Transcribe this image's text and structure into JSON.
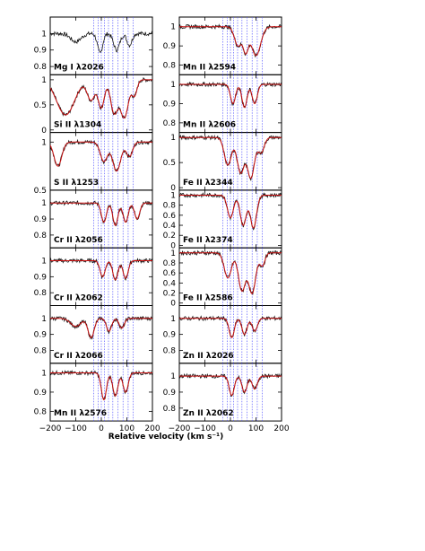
{
  "chart_data": {
    "type": "line",
    "xlabel": "Relative velocity (km s⁻¹)",
    "xlim": [
      -200,
      200
    ],
    "x_ticks": [
      "−200",
      "−100",
      "0",
      "100",
      "200"
    ],
    "component_velocities": [
      -30,
      -12,
      0,
      12,
      28,
      45,
      65,
      85,
      105,
      125
    ],
    "series": [
      {
        "name": "data",
        "color": "#000000"
      },
      {
        "name": "fit",
        "color": "#cc1111"
      }
    ],
    "columns": [
      [
        {
          "label": "Mg I λ2026",
          "ylim": [
            0.75,
            1.1
          ],
          "yticks": [
            "0.8",
            "0.9",
            "1"
          ],
          "fit": false,
          "features": [
            [
              -100,
              0.05,
              20
            ],
            [
              -5,
              0.12,
              10
            ],
            [
              60,
              0.1,
              12
            ],
            [
              110,
              0.07,
              10
            ]
          ]
        },
        {
          "label": "Si II λ1304",
          "ylim": [
            -0.05,
            1.1
          ],
          "yticks": [
            "0",
            "0.5",
            "1"
          ],
          "fit": true,
          "features": [
            [
              -140,
              0.7,
              35
            ],
            [
              -40,
              0.4,
              15
            ],
            [
              0,
              0.55,
              12
            ],
            [
              50,
              0.65,
              14
            ],
            [
              90,
              0.75,
              16
            ],
            [
              130,
              0.3,
              10
            ]
          ]
        },
        {
          "label": "S II λ1253",
          "ylim": [
            0.5,
            1.1
          ],
          "yticks": [
            "0.5",
            "1"
          ],
          "fit": true,
          "features": [
            [
              -170,
              0.25,
              15
            ],
            [
              10,
              0.2,
              14
            ],
            [
              60,
              0.3,
              16
            ],
            [
              110,
              0.15,
              12
            ]
          ]
        },
        {
          "label": "Cr II λ2056",
          "ylim": [
            0.72,
            1.08
          ],
          "yticks": [
            "0.8",
            "0.9",
            "1"
          ],
          "fit": true,
          "features": [
            [
              10,
              0.12,
              10
            ],
            [
              55,
              0.14,
              10
            ],
            [
              95,
              0.12,
              10
            ],
            [
              140,
              0.1,
              10
            ]
          ]
        },
        {
          "label": "Cr II λ2062",
          "ylim": [
            0.72,
            1.08
          ],
          "yticks": [
            "0.8",
            "0.9",
            "1"
          ],
          "fit": true,
          "features": [
            [
              5,
              0.1,
              10
            ],
            [
              55,
              0.12,
              10
            ],
            [
              95,
              0.11,
              10
            ]
          ]
        },
        {
          "label": "Cr II λ2066",
          "ylim": [
            0.72,
            1.08
          ],
          "yticks": [
            "0.8",
            "0.9",
            "1"
          ],
          "fit": true,
          "features": [
            [
              -100,
              0.05,
              20
            ],
            [
              -40,
              0.12,
              12
            ],
            [
              30,
              0.08,
              10
            ],
            [
              80,
              0.06,
              10
            ]
          ]
        },
        {
          "label": "Mn II λ2576",
          "ylim": [
            0.75,
            1.05
          ],
          "yticks": [
            "0.8",
            "0.9",
            "1"
          ],
          "fit": true,
          "features": [
            [
              10,
              0.14,
              10
            ],
            [
              55,
              0.12,
              10
            ],
            [
              95,
              0.1,
              10
            ]
          ]
        }
      ],
      [
        {
          "label": "Mn II λ2594",
          "ylim": [
            0.75,
            1.05
          ],
          "yticks": [
            "0.8",
            "0.9",
            "1"
          ],
          "fit": true,
          "features": [
            [
              30,
              0.1,
              14
            ],
            [
              60,
              0.12,
              10
            ],
            [
              100,
              0.15,
              18
            ]
          ]
        },
        {
          "label": "Mn II λ2606",
          "ylim": [
            0.75,
            1.05
          ],
          "yticks": [
            "0.8",
            "0.9",
            "1"
          ],
          "fit": true,
          "features": [
            [
              10,
              0.1,
              10
            ],
            [
              55,
              0.12,
              10
            ],
            [
              95,
              0.1,
              10
            ]
          ]
        },
        {
          "label": "Fe II λ2344",
          "ylim": [
            -0.05,
            1.1
          ],
          "yticks": [
            "0",
            "0.5",
            "1"
          ],
          "fit": true,
          "features": [
            [
              -10,
              0.55,
              14
            ],
            [
              40,
              0.7,
              14
            ],
            [
              80,
              0.8,
              14
            ],
            [
              120,
              0.3,
              12
            ]
          ]
        },
        {
          "label": "Fe II λ2374",
          "ylim": [
            -0.05,
            1.1
          ],
          "yticks": [
            "0",
            "0.2",
            "0.4",
            "0.6",
            "0.8",
            "1"
          ],
          "fit": true,
          "features": [
            [
              0,
              0.45,
              12
            ],
            [
              50,
              0.6,
              12
            ],
            [
              90,
              0.65,
              12
            ]
          ]
        },
        {
          "label": "Fe II λ2586",
          "ylim": [
            -0.05,
            1.1
          ],
          "yticks": [
            "0",
            "0.2",
            "0.4",
            "0.6",
            "0.8",
            "1"
          ],
          "fit": true,
          "features": [
            [
              -10,
              0.5,
              14
            ],
            [
              45,
              0.75,
              14
            ],
            [
              85,
              0.8,
              14
            ],
            [
              125,
              0.25,
              10
            ]
          ]
        },
        {
          "label": "Zn II λ2026",
          "ylim": [
            0.72,
            1.08
          ],
          "yticks": [
            "0.8",
            "0.9",
            "1"
          ],
          "fit": true,
          "features": [
            [
              5,
              0.12,
              10
            ],
            [
              55,
              0.1,
              10
            ],
            [
              95,
              0.08,
              10
            ]
          ]
        },
        {
          "label": "Zn II λ2062",
          "ylim": [
            0.72,
            1.08
          ],
          "yticks": [
            "0.8",
            "0.9",
            "1"
          ],
          "fit": true,
          "features": [
            [
              5,
              0.12,
              10
            ],
            [
              55,
              0.1,
              10
            ],
            [
              95,
              0.08,
              10
            ]
          ]
        }
      ]
    ]
  }
}
